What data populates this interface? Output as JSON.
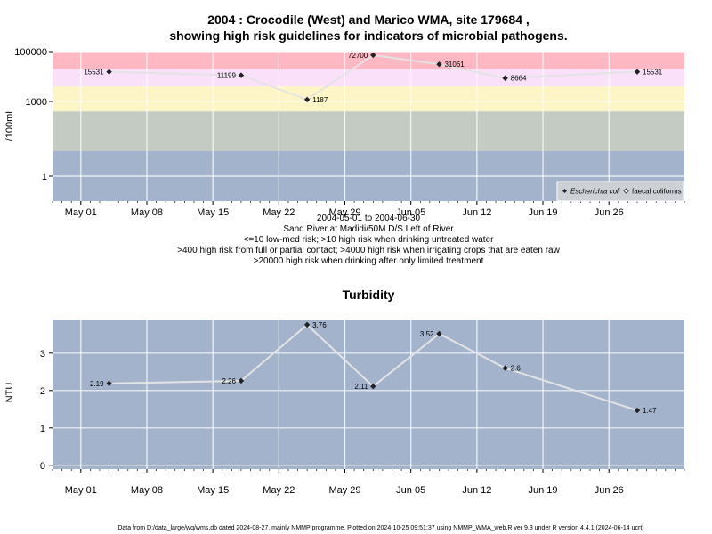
{
  "chart_data": [
    {
      "type": "line",
      "title_lines": [
        "2004 : Crocodile (West) and Marico WMA, site 179684 ,",
        "showing high risk guidelines for indicators of microbial pathogens."
      ],
      "ylabel": "/100mL",
      "yscale": "log",
      "ylim": [
        0.1,
        100000
      ],
      "yticks": [
        {
          "value": 1,
          "label": "1"
        },
        {
          "value": 1000,
          "label": "1000"
        },
        {
          "value": 100000,
          "label": "100000"
        }
      ],
      "xlim": [
        "2004-04-28",
        "2004-07-04"
      ],
      "xticks": [
        {
          "date": "2004-05-01",
          "label": "May 01"
        },
        {
          "date": "2004-05-08",
          "label": "May 08"
        },
        {
          "date": "2004-05-15",
          "label": "May 15"
        },
        {
          "date": "2004-05-22",
          "label": "May 22"
        },
        {
          "date": "2004-05-29",
          "label": "May 29"
        },
        {
          "date": "2004-06-05",
          "label": "Jun 05"
        },
        {
          "date": "2004-06-12",
          "label": "Jun 12"
        },
        {
          "date": "2004-06-19",
          "label": "Jun 19"
        },
        {
          "date": "2004-06-26",
          "label": "Jun 26"
        }
      ],
      "bands": [
        {
          "from": 0.1,
          "to": 10,
          "color": "#a3b3cc"
        },
        {
          "from": 10,
          "to": 400,
          "color": "#c3cbc3"
        },
        {
          "from": 400,
          "to": 4000,
          "color": "#fdf5c6"
        },
        {
          "from": 4000,
          "to": 20000,
          "color": "#fae0f9"
        },
        {
          "from": 20000,
          "to": 100000,
          "color": "#feb8c4"
        }
      ],
      "series": [
        {
          "name": "Escherichia coli",
          "marker": "filled-diamond",
          "points": [
            {
              "date": "2004-05-04",
              "value": 15531,
              "label": "15531"
            },
            {
              "date": "2004-05-18",
              "value": 11199,
              "label": "11199"
            },
            {
              "date": "2004-05-25",
              "value": 1187,
              "label": "1187"
            },
            {
              "date": "2004-06-01",
              "value": 72700,
              "label": "72700"
            },
            {
              "date": "2004-06-08",
              "value": 31061,
              "label": "31061"
            },
            {
              "date": "2004-06-15",
              "value": 8664,
              "label": "8664"
            },
            {
              "date": "2004-06-29",
              "value": 15531,
              "label": "15531"
            }
          ]
        }
      ],
      "legend": {
        "position": "bottom-right",
        "entries": [
          {
            "label": "Escherichia coli",
            "marker": "filled-diamond",
            "italic": true
          },
          {
            "label": "faecal coliforms",
            "marker": "open-diamond",
            "italic": false
          }
        ]
      },
      "caption_lines": [
        "2004-05-01 to 2004-06-30",
        "Sand River at Madidi/50M D/S Left of River",
        "<=10 low-med risk; >10 high risk when drinking untreated water",
        ">400 high risk from full or partial contact; >4000 high risk when irrigating crops that are eaten raw",
        ">20000 high risk when drinking after only limited treatment"
      ]
    },
    {
      "type": "line",
      "title": "Turbidity",
      "ylabel": "NTU",
      "ylim": [
        -0.1,
        3.9
      ],
      "yticks": [
        0,
        1,
        2,
        3
      ],
      "xlim": [
        "2004-04-28",
        "2004-07-04"
      ],
      "background": "#a3b3cc",
      "series": [
        {
          "marker": "filled-diamond",
          "points": [
            {
              "date": "2004-05-04",
              "value": 2.19,
              "label": "2.19"
            },
            {
              "date": "2004-05-18",
              "value": 2.26,
              "label": "2.26"
            },
            {
              "date": "2004-05-25",
              "value": 3.76,
              "label": "3.76"
            },
            {
              "date": "2004-06-01",
              "value": 2.11,
              "label": "2.11"
            },
            {
              "date": "2004-06-08",
              "value": 3.52,
              "label": "3.52"
            },
            {
              "date": "2004-06-15",
              "value": 2.6,
              "label": "2.6"
            },
            {
              "date": "2004-06-29",
              "value": 1.47,
              "label": "1.47"
            }
          ]
        }
      ]
    }
  ],
  "footer": "Data from D:/data_large/wq/wms.db dated 2024-08-27, mainly NMMP programme. Plotted on 2024-10-25 09:51:37 using NMMP_WMA_web.R ver 9.3 under R version 4.4.1 (2024-06-14 ucrt)"
}
